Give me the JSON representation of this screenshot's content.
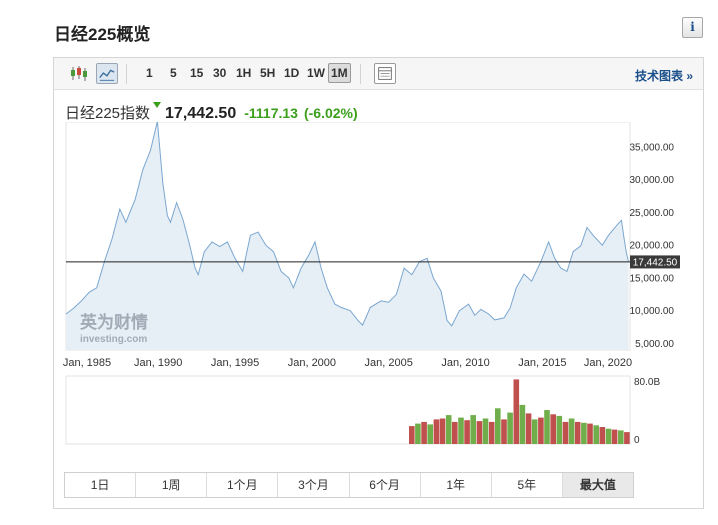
{
  "page": {
    "title": "日经225概览",
    "info_label": "i"
  },
  "toolbar": {
    "intervals": [
      "1",
      "5",
      "15",
      "30",
      "1H",
      "5H",
      "1D",
      "1W",
      "1M"
    ],
    "active_interval": "1M",
    "tech_link": "技术图表 »"
  },
  "quote": {
    "name": "日经225指数",
    "price": "17,442.50",
    "change": "-1117.13",
    "change_pct": "(-6.02%)",
    "direction": "down",
    "color_change": "#3b9f1c"
  },
  "watermark": {
    "brand_cn": "英为财情",
    "brand_en": "investing.com"
  },
  "range_buttons": [
    "1日",
    "1周",
    "1个月",
    "3个月",
    "6个月",
    "1年",
    "5年",
    "最大值"
  ],
  "active_range": "最大值",
  "chart_data": {
    "type": "area",
    "title": "",
    "xlabel": "",
    "ylabel": "",
    "x_ticks": [
      {
        "label": "Jan, 1985",
        "x": 1985
      },
      {
        "label": "Jan, 1990",
        "x": 1990
      },
      {
        "label": "Jan, 1995",
        "x": 1995
      },
      {
        "label": "Jan, 2000",
        "x": 2000
      },
      {
        "label": "Jan, 2005",
        "x": 2005
      },
      {
        "label": "Jan, 2010",
        "x": 2010
      },
      {
        "label": "Jan, 2015",
        "x": 2015
      },
      {
        "label": "Jan, 2020",
        "x": 2020
      }
    ],
    "y_ticks": [
      {
        "label": "5,000.00",
        "value": 5000
      },
      {
        "label": "10,000.00",
        "value": 10000
      },
      {
        "label": "15,000.00",
        "value": 15000
      },
      {
        "label": "20,000.00",
        "value": 20000
      },
      {
        "label": "25,000.00",
        "value": 25000
      },
      {
        "label": "30,000.00",
        "value": 30000
      },
      {
        "label": "35,000.00",
        "value": 35000
      }
    ],
    "xlim": [
      1984.0,
      2020.7
    ],
    "ylim": [
      4000,
      38800
    ],
    "current_value": 17442.5,
    "current_label": "17,442.50",
    "line_color": "#7ba7d0",
    "fill_color": "#e6eef6",
    "series": [
      {
        "x": [
          1984.0,
          1984.5,
          1985.0,
          1985.5,
          1986.0,
          1986.5,
          1987.0,
          1987.5,
          1987.9,
          1988.5,
          1989.0,
          1989.5,
          1989.95,
          1990.3,
          1990.6,
          1990.8,
          1991.2,
          1991.6,
          1992.0,
          1992.4,
          1992.6,
          1993.0,
          1993.5,
          1994.0,
          1994.5,
          1995.0,
          1995.5,
          1996.0,
          1996.5,
          1997.0,
          1997.5,
          1998.0,
          1998.5,
          1998.8,
          1999.3,
          1999.8,
          2000.2,
          2000.6,
          2001.0,
          2001.5,
          2001.9,
          2002.5,
          2003.0,
          2003.3,
          2003.8,
          2004.5,
          2005.0,
          2005.5,
          2006.0,
          2006.5,
          2007.0,
          2007.5,
          2007.9,
          2008.4,
          2008.8,
          2009.1,
          2009.6,
          2010.2,
          2010.6,
          2011.0,
          2011.5,
          2011.9,
          2012.5,
          2012.9,
          2013.3,
          2013.8,
          2014.3,
          2014.9,
          2015.4,
          2015.8,
          2016.2,
          2016.6,
          2017.0,
          2017.5,
          2017.9,
          2018.3,
          2018.9,
          2019.3,
          2019.9,
          2020.15,
          2020.3,
          2020.45,
          2020.6
        ],
        "y": [
          9500,
          10400,
          11500,
          12800,
          13500,
          17500,
          21000,
          25500,
          23500,
          27000,
          31500,
          34500,
          38900,
          29500,
          24500,
          23500,
          26500,
          24000,
          20500,
          16500,
          15500,
          19000,
          20500,
          19800,
          20500,
          18000,
          16000,
          21500,
          22000,
          20000,
          19000,
          16000,
          15000,
          13500,
          16500,
          18500,
          20500,
          16500,
          13500,
          11000,
          10500,
          10000,
          8500,
          7800,
          10500,
          11500,
          11300,
          12500,
          16500,
          15500,
          17500,
          18000,
          15000,
          13000,
          8500,
          7700,
          10000,
          11000,
          9300,
          10200,
          9500,
          8600,
          8900,
          10400,
          13500,
          15600,
          14500,
          17500,
          20500,
          18000,
          16500,
          16000,
          19000,
          19900,
          22700,
          21500,
          20000,
          21500,
          23200,
          23800,
          21200,
          19000,
          17442.5
        ]
      }
    ],
    "volume": {
      "y_ticks": [
        {
          "label": "80.0B",
          "value": 80
        },
        {
          "label": "0",
          "value": 0
        }
      ],
      "ylim": [
        0,
        80
      ],
      "unit": "B",
      "x": [
        2006.5,
        2006.9,
        2007.3,
        2007.7,
        2008.1,
        2008.5,
        2008.9,
        2009.3,
        2009.7,
        2010.1,
        2010.5,
        2010.9,
        2011.3,
        2011.7,
        2012.1,
        2012.5,
        2012.9,
        2013.3,
        2013.7,
        2014.1,
        2014.5,
        2014.9,
        2015.3,
        2015.7,
        2016.1,
        2016.5,
        2016.9,
        2017.3,
        2017.7,
        2018.1,
        2018.5,
        2018.9,
        2019.3,
        2019.7,
        2020.1,
        2020.5
      ],
      "values": [
        21,
        24,
        26,
        23,
        29,
        30,
        34,
        26,
        31,
        28,
        34,
        27,
        30,
        26,
        42,
        29,
        37,
        76,
        46,
        36,
        29,
        31,
        40,
        35,
        33,
        26,
        30,
        26,
        25,
        24,
        22,
        20,
        18,
        17,
        16,
        14
      ],
      "colors": [
        "#c0504d",
        "#6fae4a",
        "#c0504d",
        "#6fae4a",
        "#c0504d",
        "#c0504d",
        "#6fae4a",
        "#c0504d",
        "#6fae4a",
        "#c0504d",
        "#6fae4a",
        "#c0504d",
        "#6fae4a",
        "#c0504d",
        "#6fae4a",
        "#c0504d",
        "#6fae4a",
        "#c0504d",
        "#6fae4a",
        "#c0504d",
        "#6fae4a",
        "#c0504d",
        "#6fae4a",
        "#c0504d",
        "#6fae4a",
        "#c0504d",
        "#6fae4a",
        "#c0504d",
        "#6fae4a",
        "#c0504d",
        "#6fae4a",
        "#c0504d",
        "#6fae4a",
        "#c0504d",
        "#6fae4a",
        "#c0504d"
      ]
    }
  }
}
